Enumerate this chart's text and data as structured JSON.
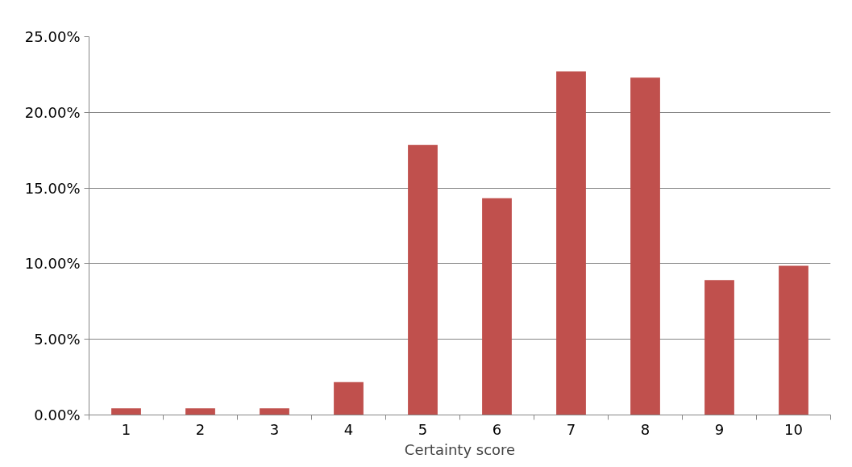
{
  "chart_data": {
    "type": "bar",
    "xlabel": "Certainty score",
    "categories": [
      "1",
      "2",
      "3",
      "4",
      "5",
      "6",
      "7",
      "8",
      "9",
      "10"
    ],
    "values": [
      0.44,
      0.44,
      0.44,
      2.17,
      17.84,
      14.32,
      22.71,
      22.3,
      8.92,
      9.86
    ],
    "color": "#c0504d",
    "ylim": [
      0,
      25
    ],
    "yticks": [
      {
        "value": 0,
        "label": "0.00%"
      },
      {
        "value": 5,
        "label": "5.00%"
      },
      {
        "value": 10,
        "label": "10.00%"
      },
      {
        "value": 15,
        "label": "15.00%"
      },
      {
        "value": 20,
        "label": "20.00%"
      },
      {
        "value": 25,
        "label": "25.00%"
      }
    ],
    "grid": "y"
  }
}
